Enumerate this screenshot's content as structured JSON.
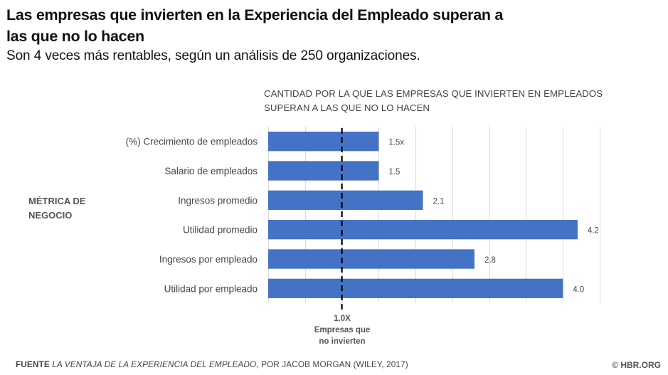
{
  "header": {
    "title": "Las empresas que invierten en la Experiencia del Empleado superan a las que no lo hacen",
    "subtitle": "Son 4 veces más rentables, según un análisis de 250 organizaciones."
  },
  "chart_data": {
    "type": "bar",
    "orientation": "horizontal",
    "title": "CANTIDAD POR LA QUE LAS EMPRESAS QUE INVIERTEN EN EMPLEADOS SUPERAN A LAS QUE NO LO HACEN",
    "ylabel": "MÉTRICA DE NEGOCIO",
    "xlabel": "",
    "categories": [
      "(%) Crecimiento de empleados",
      "Salario de empleados",
      "Ingresos promedio",
      "Utilidad promedio",
      "Ingresos por empleado",
      "Utilidad por empleado"
    ],
    "values": [
      1.5,
      1.5,
      2.1,
      4.2,
      2.8,
      4.0
    ],
    "value_labels": [
      "1.5x",
      "1.5",
      "2.1",
      "4.2",
      "2.8",
      "4.0"
    ],
    "xlim": [
      0,
      4.5
    ],
    "grid_step": 0.5,
    "grid": true,
    "bar_color": "#4472c4",
    "reference_line": {
      "value": 1.0,
      "style": "dashed",
      "label_value": "1.0X",
      "label_text": "Empresas que no invierten"
    }
  },
  "footer": {
    "source_prefix": "FUENTE",
    "source_title": "LA VENTAJA DE LA EXPERIENCIA DEL EMPLEADO,",
    "source_rest": "POR JACOB MORGAN (WILEY, 2017)",
    "copyright": "© HBR.ORG"
  }
}
